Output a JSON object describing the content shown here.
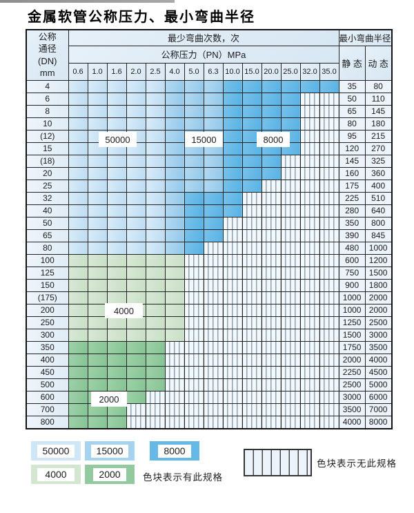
{
  "title": "金属软管公称压力、最小弯曲半径",
  "table": {
    "dn_header_lines": [
      "公称",
      "通径",
      "(DN)",
      "mm"
    ],
    "bend_cycles_header": "最少弯曲次数，次",
    "pressure_header": "公称压力（PN）MPa",
    "radius_header": "最小弯曲半径",
    "static_header": "静 态",
    "dynamic_header": "动 态",
    "pressure_columns": [
      "0.6",
      "1.0",
      "1.6",
      "2.0",
      "2.5",
      "4.0",
      "5.0",
      "6.3",
      "10.0",
      "15.0",
      "20.0",
      "25.0",
      "32.0",
      "35.0"
    ],
    "zone_meaning": {
      "50": "50000次",
      "15": "15000次",
      "8": "8000次",
      "4": "4000次",
      "2": "2000次",
      "x": "无此规格"
    },
    "rows": [
      {
        "dn": "4",
        "zones": [
          "50",
          "50",
          "50",
          "50",
          "50",
          "15",
          "15",
          "15",
          "8",
          "8",
          "8",
          "8",
          "8",
          "8"
        ],
        "static": "35",
        "dynamic": "80"
      },
      {
        "dn": "6",
        "zones": [
          "50",
          "50",
          "50",
          "50",
          "50",
          "15",
          "15",
          "15",
          "8",
          "8",
          "8",
          "8",
          "x",
          "x"
        ],
        "static": "50",
        "dynamic": "110"
      },
      {
        "dn": "8",
        "zones": [
          "50",
          "50",
          "50",
          "50",
          "50",
          "15",
          "15",
          "15",
          "8",
          "8",
          "8",
          "8",
          "x",
          "x"
        ],
        "static": "65",
        "dynamic": "145"
      },
      {
        "dn": "10",
        "zones": [
          "50",
          "50",
          "50",
          "50",
          "50",
          "15",
          "15",
          "15",
          "8",
          "8",
          "8",
          "8",
          "x",
          "x"
        ],
        "static": "80",
        "dynamic": "180"
      },
      {
        "dn": "(12)",
        "zones": [
          "50",
          "50",
          "50",
          "50",
          "50",
          "15",
          "15",
          "15",
          "8",
          "8",
          "8",
          "8",
          "x",
          "x"
        ],
        "static": "95",
        "dynamic": "215"
      },
      {
        "dn": "15",
        "zones": [
          "50",
          "50",
          "50",
          "50",
          "50",
          "15",
          "15",
          "15",
          "8",
          "8",
          "8",
          "8",
          "x",
          "x"
        ],
        "static": "120",
        "dynamic": "270"
      },
      {
        "dn": "(18)",
        "zones": [
          "50",
          "50",
          "50",
          "50",
          "50",
          "15",
          "15",
          "15",
          "8",
          "8",
          "8",
          "x",
          "x",
          "x"
        ],
        "static": "145",
        "dynamic": "325"
      },
      {
        "dn": "20",
        "zones": [
          "50",
          "50",
          "50",
          "50",
          "50",
          "15",
          "15",
          "15",
          "8",
          "8",
          "8",
          "x",
          "x",
          "x"
        ],
        "static": "160",
        "dynamic": "360"
      },
      {
        "dn": "25",
        "zones": [
          "50",
          "50",
          "50",
          "50",
          "50",
          "15",
          "15",
          "15",
          "8",
          "8",
          "x",
          "x",
          "x",
          "x"
        ],
        "static": "175",
        "dynamic": "400"
      },
      {
        "dn": "32",
        "zones": [
          "50",
          "50",
          "50",
          "50",
          "50",
          "15",
          "8",
          "8",
          "8",
          "x",
          "x",
          "x",
          "x",
          "x"
        ],
        "static": "225",
        "dynamic": "510"
      },
      {
        "dn": "40",
        "zones": [
          "50",
          "50",
          "50",
          "50",
          "50",
          "15",
          "8",
          "8",
          "8",
          "x",
          "x",
          "x",
          "x",
          "x"
        ],
        "static": "280",
        "dynamic": "640"
      },
      {
        "dn": "50",
        "zones": [
          "50",
          "50",
          "50",
          "50",
          "50",
          "15",
          "8",
          "8",
          "x",
          "x",
          "x",
          "x",
          "x",
          "x"
        ],
        "static": "350",
        "dynamic": "800"
      },
      {
        "dn": "65",
        "zones": [
          "50",
          "50",
          "50",
          "50",
          "50",
          "15",
          "8",
          "8",
          "x",
          "x",
          "x",
          "x",
          "x",
          "x"
        ],
        "static": "390",
        "dynamic": "845"
      },
      {
        "dn": "80",
        "zones": [
          "50",
          "50",
          "50",
          "50",
          "50",
          "15",
          "8",
          "x",
          "x",
          "x",
          "x",
          "x",
          "x",
          "x"
        ],
        "static": "480",
        "dynamic": "1000"
      },
      {
        "dn": "100",
        "zones": [
          "4",
          "4",
          "4",
          "4",
          "4",
          "4",
          "x",
          "x",
          "x",
          "x",
          "x",
          "x",
          "x",
          "x"
        ],
        "static": "600",
        "dynamic": "1200"
      },
      {
        "dn": "125",
        "zones": [
          "4",
          "4",
          "4",
          "4",
          "4",
          "4",
          "x",
          "x",
          "x",
          "x",
          "x",
          "x",
          "x",
          "x"
        ],
        "static": "750",
        "dynamic": "1500"
      },
      {
        "dn": "150",
        "zones": [
          "4",
          "4",
          "4",
          "4",
          "4",
          "4",
          "x",
          "x",
          "x",
          "x",
          "x",
          "x",
          "x",
          "x"
        ],
        "static": "900",
        "dynamic": "1800"
      },
      {
        "dn": "(175)",
        "zones": [
          "4",
          "4",
          "4",
          "4",
          "4",
          "4",
          "x",
          "x",
          "x",
          "x",
          "x",
          "x",
          "x",
          "x"
        ],
        "static": "1000",
        "dynamic": "2000"
      },
      {
        "dn": "200",
        "zones": [
          "4",
          "4",
          "4",
          "4",
          "4",
          "4",
          "x",
          "x",
          "x",
          "x",
          "x",
          "x",
          "x",
          "x"
        ],
        "static": "1000",
        "dynamic": "2000"
      },
      {
        "dn": "250",
        "zones": [
          "4",
          "4",
          "4",
          "4",
          "4",
          "4",
          "x",
          "x",
          "x",
          "x",
          "x",
          "x",
          "x",
          "x"
        ],
        "static": "1250",
        "dynamic": "2500"
      },
      {
        "dn": "300",
        "zones": [
          "4",
          "4",
          "4",
          "4",
          "4",
          "4",
          "x",
          "x",
          "x",
          "x",
          "x",
          "x",
          "x",
          "x"
        ],
        "static": "1500",
        "dynamic": "3000"
      },
      {
        "dn": "350",
        "zones": [
          "2",
          "2",
          "2",
          "2",
          "2",
          "x",
          "x",
          "x",
          "x",
          "x",
          "x",
          "x",
          "x",
          "x"
        ],
        "static": "1750",
        "dynamic": "3500"
      },
      {
        "dn": "400",
        "zones": [
          "2",
          "2",
          "2",
          "2",
          "2",
          "x",
          "x",
          "x",
          "x",
          "x",
          "x",
          "x",
          "x",
          "x"
        ],
        "static": "2000",
        "dynamic": "4000"
      },
      {
        "dn": "450",
        "zones": [
          "2",
          "2",
          "2",
          "2",
          "2",
          "x",
          "x",
          "x",
          "x",
          "x",
          "x",
          "x",
          "x",
          "x"
        ],
        "static": "2250",
        "dynamic": "4500"
      },
      {
        "dn": "500",
        "zones": [
          "2",
          "2",
          "2",
          "2",
          "2",
          "x",
          "x",
          "x",
          "x",
          "x",
          "x",
          "x",
          "x",
          "x"
        ],
        "static": "2500",
        "dynamic": "5000"
      },
      {
        "dn": "600",
        "zones": [
          "2",
          "2",
          "2",
          "2",
          "x",
          "x",
          "x",
          "x",
          "x",
          "x",
          "x",
          "x",
          "x",
          "x"
        ],
        "static": "3000",
        "dynamic": "6000"
      },
      {
        "dn": "700",
        "zones": [
          "2",
          "2",
          "2",
          "x",
          "x",
          "x",
          "x",
          "x",
          "x",
          "x",
          "x",
          "x",
          "x",
          "x"
        ],
        "static": "3500",
        "dynamic": "7000"
      },
      {
        "dn": "800",
        "zones": [
          "2",
          "2",
          "2",
          "x",
          "x",
          "x",
          "x",
          "x",
          "x",
          "x",
          "x",
          "x",
          "x",
          "x"
        ],
        "static": "4000",
        "dynamic": "8000"
      }
    ]
  },
  "zone_labels": {
    "l50000": "50000",
    "l15000": "15000",
    "l8000": "8000",
    "l4000": "4000",
    "l2000": "2000"
  },
  "legend": {
    "items": [
      {
        "value": "50000",
        "color": "#cfe6f7"
      },
      {
        "value": "15000",
        "color": "#a5d3ef"
      },
      {
        "value": "8000",
        "color": "#66b9e7"
      },
      {
        "value": "4000",
        "color": "#d3e6d0"
      },
      {
        "value": "2000",
        "color": "#92c99f"
      }
    ],
    "present_note": "色块表示有此规格",
    "absent_note": "色块表示无此规格"
  },
  "colors": {
    "zone_50000": "#cfe6f7",
    "zone_15000": "#a5d3ef",
    "zone_8000": "#66b9e7",
    "zone_4000": "#d3e6d0",
    "zone_2000": "#92c99f",
    "no_spec_bg": "#f3f8fc",
    "header_bg": "#dfecf6",
    "border": "#222222"
  }
}
